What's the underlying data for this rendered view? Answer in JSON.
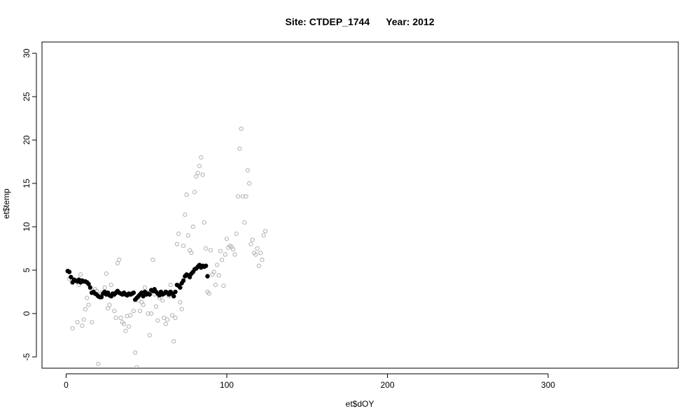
{
  "chart_data": {
    "type": "scatter",
    "title": "Site: CTDEP_1744      Year: 2012",
    "xlabel": "et$dOY",
    "ylabel": "et$temp",
    "xlim": [
      -15,
      381
    ],
    "ylim": [
      -6.3,
      31.3
    ],
    "xticks": [
      0,
      100,
      200,
      300
    ],
    "yticks": [
      -5,
      0,
      5,
      10,
      15,
      20,
      25,
      30
    ],
    "grid": false,
    "legend": "none",
    "colors": {
      "air": "#b0b0b0",
      "water": "#000000"
    },
    "series": [
      {
        "marker": "open-circle",
        "color": "#b0b0b0",
        "points": [
          [
            2,
            4.0
          ],
          [
            3,
            4.2
          ],
          [
            4,
            -1.7
          ],
          [
            7,
            -1.0
          ],
          [
            8,
            3.3
          ],
          [
            9,
            4.5
          ],
          [
            10,
            -1.4
          ],
          [
            11,
            -0.7
          ],
          [
            12,
            0.5
          ],
          [
            13,
            1.8
          ],
          [
            14,
            1.0
          ],
          [
            16,
            -1.0
          ],
          [
            18,
            2.8
          ],
          [
            19,
            2.6
          ],
          [
            20,
            -5.8
          ],
          [
            22,
            2.4
          ],
          [
            24,
            3.0
          ],
          [
            25,
            4.6
          ],
          [
            26,
            0.6
          ],
          [
            27,
            1.0
          ],
          [
            28,
            3.3
          ],
          [
            29,
            2.0
          ],
          [
            30,
            0.3
          ],
          [
            31,
            -0.5
          ],
          [
            32,
            5.8
          ],
          [
            33,
            6.2
          ],
          [
            34,
            -0.5
          ],
          [
            35,
            -1.0
          ],
          [
            36,
            -1.2
          ],
          [
            37,
            -2.0
          ],
          [
            38,
            -0.3
          ],
          [
            39,
            -1.5
          ],
          [
            40,
            -0.2
          ],
          [
            41,
            2.2
          ],
          [
            42,
            0.3
          ],
          [
            43,
            -4.5
          ],
          [
            44,
            -6.2
          ],
          [
            45,
            1.5
          ],
          [
            46,
            0.3
          ],
          [
            47,
            1.3
          ],
          [
            48,
            1.0
          ],
          [
            49,
            3.0
          ],
          [
            50,
            2.5
          ],
          [
            51,
            0.0
          ],
          [
            52,
            -2.5
          ],
          [
            53,
            0.0
          ],
          [
            54,
            6.2
          ],
          [
            55,
            2.2
          ],
          [
            56,
            0.8
          ],
          [
            57,
            -0.8
          ],
          [
            58,
            1.8
          ],
          [
            59,
            2.5
          ],
          [
            60,
            1.5
          ],
          [
            61,
            -0.5
          ],
          [
            62,
            -1.2
          ],
          [
            63,
            -0.7
          ],
          [
            64,
            2.0
          ],
          [
            65,
            3.3
          ],
          [
            66,
            -0.2
          ],
          [
            67,
            -3.2
          ],
          [
            68,
            -0.5
          ],
          [
            69,
            8.0
          ],
          [
            70,
            9.2
          ],
          [
            71,
            1.3
          ],
          [
            72,
            0.5
          ],
          [
            73,
            7.8
          ],
          [
            74,
            11.4
          ],
          [
            75,
            13.7
          ],
          [
            76,
            9.0
          ],
          [
            77,
            7.3
          ],
          [
            78,
            7.0
          ],
          [
            79,
            10.0
          ],
          [
            80,
            14.0
          ],
          [
            81,
            15.8
          ],
          [
            82,
            16.2
          ],
          [
            83,
            17.0
          ],
          [
            84,
            18.0
          ],
          [
            85,
            16.0
          ],
          [
            86,
            10.5
          ],
          [
            87,
            7.5
          ],
          [
            88,
            2.5
          ],
          [
            89,
            2.3
          ],
          [
            90,
            7.3
          ],
          [
            91,
            4.5
          ],
          [
            92,
            4.8
          ],
          [
            93,
            3.3
          ],
          [
            94,
            5.6
          ],
          [
            95,
            4.4
          ],
          [
            96,
            7.2
          ],
          [
            97,
            6.2
          ],
          [
            98,
            3.2
          ],
          [
            99,
            6.8
          ],
          [
            100,
            8.6
          ],
          [
            101,
            7.6
          ],
          [
            102,
            7.8
          ],
          [
            103,
            7.7
          ],
          [
            104,
            7.4
          ],
          [
            105,
            6.8
          ],
          [
            106,
            9.2
          ],
          [
            107,
            13.5
          ],
          [
            108,
            19.0
          ],
          [
            109,
            21.3
          ],
          [
            110,
            13.5
          ],
          [
            111,
            10.5
          ],
          [
            112,
            13.5
          ],
          [
            113,
            16.5
          ],
          [
            114,
            15.0
          ],
          [
            115,
            8.0
          ],
          [
            116,
            8.5
          ],
          [
            117,
            7.0
          ],
          [
            118,
            6.8
          ],
          [
            119,
            7.5
          ],
          [
            120,
            5.5
          ],
          [
            121,
            7.0
          ],
          [
            122,
            6.2
          ],
          [
            123,
            9.0
          ],
          [
            124,
            9.5
          ]
        ]
      },
      {
        "marker": "filled-circle",
        "color": "#000000",
        "points": [
          [
            1,
            4.9
          ],
          [
            2,
            4.8
          ],
          [
            3,
            4.2
          ],
          [
            4,
            3.6
          ],
          [
            5,
            3.9
          ],
          [
            6,
            3.8
          ],
          [
            7,
            3.7
          ],
          [
            8,
            3.9
          ],
          [
            9,
            3.6
          ],
          [
            10,
            3.8
          ],
          [
            11,
            3.7
          ],
          [
            12,
            3.7
          ],
          [
            13,
            3.6
          ],
          [
            14,
            3.4
          ],
          [
            15,
            3.0
          ],
          [
            16,
            2.4
          ],
          [
            17,
            2.5
          ],
          [
            18,
            2.3
          ],
          [
            19,
            2.2
          ],
          [
            20,
            2.0
          ],
          [
            21,
            1.9
          ],
          [
            22,
            1.9
          ],
          [
            23,
            2.3
          ],
          [
            24,
            2.5
          ],
          [
            25,
            2.2
          ],
          [
            26,
            2.4
          ],
          [
            27,
            2.1
          ],
          [
            28,
            2.0
          ],
          [
            29,
            2.3
          ],
          [
            30,
            2.2
          ],
          [
            31,
            2.4
          ],
          [
            32,
            2.6
          ],
          [
            33,
            2.4
          ],
          [
            34,
            2.3
          ],
          [
            35,
            2.2
          ],
          [
            36,
            2.4
          ],
          [
            37,
            2.2
          ],
          [
            38,
            2.1
          ],
          [
            39,
            2.3
          ],
          [
            40,
            2.2
          ],
          [
            41,
            2.3
          ],
          [
            42,
            2.4
          ],
          [
            43,
            1.6
          ],
          [
            44,
            1.8
          ],
          [
            45,
            2.0
          ],
          [
            46,
            2.2
          ],
          [
            47,
            2.4
          ],
          [
            48,
            2.0
          ],
          [
            49,
            2.5
          ],
          [
            50,
            2.2
          ],
          [
            51,
            2.3
          ],
          [
            52,
            2.2
          ],
          [
            53,
            2.7
          ],
          [
            54,
            2.6
          ],
          [
            55,
            2.8
          ],
          [
            56,
            2.5
          ],
          [
            57,
            2.3
          ],
          [
            58,
            2.1
          ],
          [
            59,
            2.5
          ],
          [
            60,
            2.2
          ],
          [
            61,
            2.3
          ],
          [
            62,
            2.5
          ],
          [
            63,
            2.4
          ],
          [
            64,
            2.2
          ],
          [
            65,
            2.5
          ],
          [
            66,
            2.3
          ],
          [
            67,
            2.0
          ],
          [
            68,
            2.5
          ],
          [
            69,
            3.3
          ],
          [
            70,
            3.2
          ],
          [
            71,
            3.0
          ],
          [
            72,
            3.5
          ],
          [
            73,
            3.8
          ],
          [
            74,
            4.3
          ],
          [
            75,
            4.5
          ],
          [
            76,
            4.4
          ],
          [
            77,
            4.2
          ],
          [
            78,
            4.6
          ],
          [
            79,
            4.8
          ],
          [
            80,
            5.1
          ],
          [
            81,
            5.2
          ],
          [
            82,
            5.4
          ],
          [
            83,
            5.6
          ],
          [
            84,
            5.3
          ],
          [
            85,
            5.5
          ],
          [
            86,
            5.4
          ],
          [
            87,
            5.5
          ],
          [
            88,
            4.3
          ]
        ]
      }
    ]
  }
}
